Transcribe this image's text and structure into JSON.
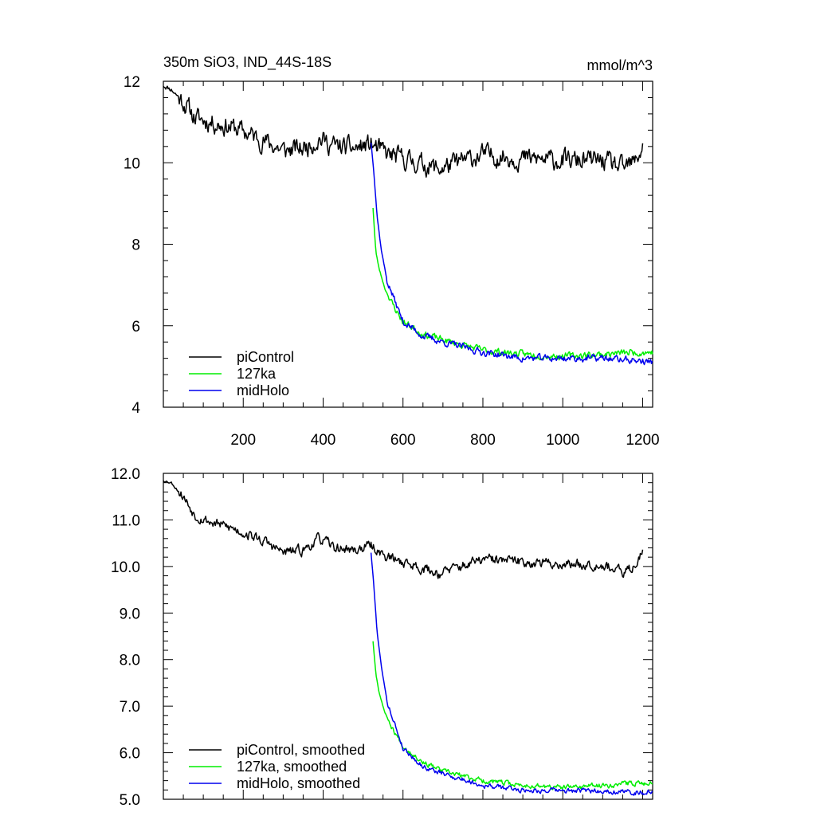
{
  "chart_data": [
    {
      "type": "line",
      "title": "350m SiO3, IND_44S-18S",
      "units": "mmol/m^3",
      "xlabel": "",
      "ylabel": "",
      "xlim": [
        0,
        1225
      ],
      "ylim": [
        4,
        12
      ],
      "xticks": [
        200,
        400,
        600,
        800,
        1000,
        1200
      ],
      "xtick_labels": [
        "200",
        "400",
        "600",
        "800",
        "1000",
        "1200"
      ],
      "yticks": [
        4,
        6,
        8,
        10,
        12
      ],
      "ytick_labels": [
        "4",
        "6",
        "8",
        "10",
        "12"
      ],
      "legend_position": "bottom-left",
      "series": [
        {
          "name": "piControl",
          "color": "#000000",
          "start": 0,
          "end": 1200,
          "noise": 0.2,
          "seed": 11,
          "anchors": [
            [
              0,
              11.9
            ],
            [
              20,
              11.8
            ],
            [
              50,
              11.5
            ],
            [
              80,
              11.1
            ],
            [
              120,
              11.0
            ],
            [
              180,
              10.85
            ],
            [
              250,
              10.55
            ],
            [
              300,
              10.3
            ],
            [
              350,
              10.35
            ],
            [
              390,
              10.6
            ],
            [
              430,
              10.4
            ],
            [
              480,
              10.35
            ],
            [
              520,
              10.45
            ],
            [
              560,
              10.2
            ],
            [
              600,
              10.1
            ],
            [
              690,
              9.85
            ],
            [
              800,
              10.2
            ],
            [
              900,
              10.1
            ],
            [
              1000,
              10.05
            ],
            [
              1100,
              10.05
            ],
            [
              1150,
              9.85
            ],
            [
              1180,
              10.0
            ],
            [
              1200,
              10.4
            ]
          ]
        },
        {
          "name": "127ka",
          "color": "#00ee00",
          "start": 525,
          "end": 1225,
          "noise": 0.07,
          "seed": 23,
          "anchors": [
            [
              525,
              8.9
            ],
            [
              532,
              7.8
            ],
            [
              540,
              7.4
            ],
            [
              555,
              6.9
            ],
            [
              575,
              6.5
            ],
            [
              600,
              6.1
            ],
            [
              650,
              5.8
            ],
            [
              700,
              5.65
            ],
            [
              800,
              5.4
            ],
            [
              900,
              5.3
            ],
            [
              1000,
              5.25
            ],
            [
              1100,
              5.3
            ],
            [
              1180,
              5.35
            ],
            [
              1225,
              5.35
            ]
          ]
        },
        {
          "name": "midHolo",
          "color": "#0000ee",
          "start": 520,
          "end": 1225,
          "noise": 0.07,
          "seed": 37,
          "anchors": [
            [
              520,
              10.5
            ],
            [
              527,
              9.8
            ],
            [
              535,
              8.7
            ],
            [
              545,
              7.9
            ],
            [
              560,
              7.1
            ],
            [
              580,
              6.6
            ],
            [
              600,
              6.1
            ],
            [
              650,
              5.75
            ],
            [
              700,
              5.6
            ],
            [
              800,
              5.35
            ],
            [
              900,
              5.2
            ],
            [
              1000,
              5.2
            ],
            [
              1100,
              5.2
            ],
            [
              1180,
              5.15
            ],
            [
              1225,
              5.1
            ]
          ]
        }
      ]
    },
    {
      "type": "line",
      "title": "",
      "xlabel": "",
      "ylabel": "",
      "xlim": [
        0,
        1225
      ],
      "ylim": [
        5,
        12
      ],
      "xticks": [
        200,
        400,
        600,
        800,
        1000,
        1200
      ],
      "xtick_labels": [],
      "yticks": [
        5,
        6,
        7,
        8,
        9,
        10,
        11,
        12
      ],
      "ytick_labels": [
        "5.0",
        "6.0",
        "7.0",
        "8.0",
        "9.0",
        "10.0",
        "11.0",
        "12.0"
      ],
      "legend_position": "bottom-left",
      "series": [
        {
          "name": "piControl, smoothed",
          "color": "#000000",
          "start": 0,
          "end": 1200,
          "noise": 0.09,
          "seed": 53,
          "anchors": [
            [
              0,
              11.85
            ],
            [
              20,
              11.8
            ],
            [
              50,
              11.5
            ],
            [
              80,
              11.1
            ],
            [
              120,
              10.95
            ],
            [
              180,
              10.8
            ],
            [
              250,
              10.55
            ],
            [
              300,
              10.3
            ],
            [
              350,
              10.35
            ],
            [
              390,
              10.6
            ],
            [
              430,
              10.4
            ],
            [
              480,
              10.35
            ],
            [
              520,
              10.45
            ],
            [
              560,
              10.2
            ],
            [
              600,
              10.1
            ],
            [
              690,
              9.85
            ],
            [
              800,
              10.15
            ],
            [
              900,
              10.1
            ],
            [
              1000,
              10.05
            ],
            [
              1100,
              10.05
            ],
            [
              1150,
              9.85
            ],
            [
              1180,
              10.0
            ],
            [
              1200,
              10.4
            ]
          ]
        },
        {
          "name": "127ka, smoothed",
          "color": "#00ee00",
          "start": 525,
          "end": 1225,
          "noise": 0.045,
          "seed": 67,
          "anchors": [
            [
              525,
              8.4
            ],
            [
              532,
              7.7
            ],
            [
              540,
              7.3
            ],
            [
              555,
              6.85
            ],
            [
              575,
              6.5
            ],
            [
              600,
              6.15
            ],
            [
              650,
              5.8
            ],
            [
              700,
              5.6
            ],
            [
              800,
              5.4
            ],
            [
              900,
              5.3
            ],
            [
              1000,
              5.25
            ],
            [
              1100,
              5.3
            ],
            [
              1180,
              5.35
            ],
            [
              1225,
              5.35
            ]
          ]
        },
        {
          "name": "midHolo, smoothed",
          "color": "#0000ee",
          "start": 520,
          "end": 1225,
          "noise": 0.045,
          "seed": 79,
          "anchors": [
            [
              520,
              10.3
            ],
            [
              527,
              9.6
            ],
            [
              535,
              8.6
            ],
            [
              545,
              7.9
            ],
            [
              560,
              7.1
            ],
            [
              580,
              6.6
            ],
            [
              600,
              6.1
            ],
            [
              650,
              5.7
            ],
            [
              700,
              5.55
            ],
            [
              800,
              5.3
            ],
            [
              900,
              5.2
            ],
            [
              1000,
              5.18
            ],
            [
              1100,
              5.18
            ],
            [
              1180,
              5.15
            ],
            [
              1225,
              5.15
            ]
          ]
        }
      ]
    }
  ]
}
